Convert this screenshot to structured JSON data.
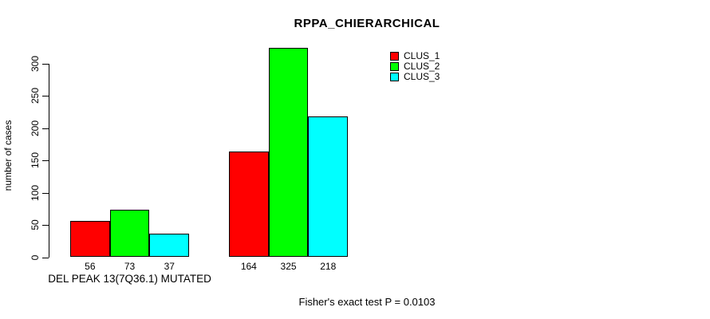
{
  "chart_data": {
    "type": "bar",
    "title": "RPPA_CHIERARCHICAL",
    "ylabel": "number of cases",
    "xlabel": "",
    "yticks": [
      0,
      50,
      100,
      150,
      200,
      250,
      300
    ],
    "ylim": [
      0,
      325
    ],
    "grid": false,
    "legend_position": "top-right",
    "categories": [
      "DEL PEAK 13(7Q36.1) MUTATED",
      ""
    ],
    "series": [
      {
        "name": "CLUS_1",
        "color": "#ff0000",
        "values": [
          56,
          164
        ]
      },
      {
        "name": "CLUS_2",
        "color": "#00ff00",
        "values": [
          73,
          325
        ]
      },
      {
        "name": "CLUS_3",
        "color": "#00ffff",
        "values": [
          37,
          218
        ]
      }
    ],
    "bar_value_labels": [
      [
        "56",
        "73",
        "37"
      ],
      [
        "164",
        "325",
        "218"
      ]
    ],
    "annotation": "Fisher's exact test P = 0.0103"
  }
}
